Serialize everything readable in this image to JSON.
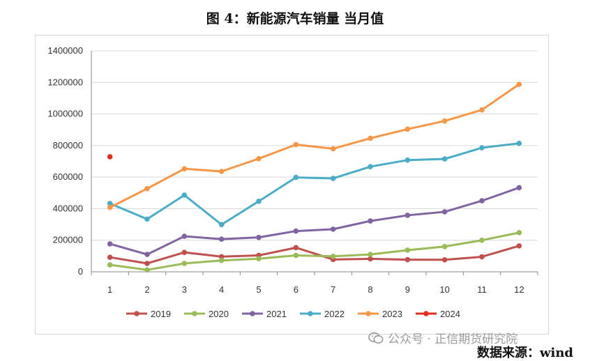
{
  "title": "图 4：新能源汽车销量 当月值",
  "watermark": "公众号 · 正信期货研究院",
  "source": "数据来源：wind",
  "chart_data": {
    "type": "line",
    "categories": [
      "1",
      "2",
      "3",
      "4",
      "5",
      "6",
      "7",
      "8",
      "9",
      "10",
      "11",
      "12"
    ],
    "ylim": [
      0,
      1400000
    ],
    "yticks": [
      "0",
      "200000",
      "400000",
      "600000",
      "800000",
      "1000000",
      "1200000",
      "1400000"
    ],
    "grid": "horizontal",
    "legend_position": "bottom",
    "series": [
      {
        "name": "2019",
        "color": "#c0504d",
        "values": [
          92000,
          53000,
          123000,
          96000,
          104000,
          153000,
          78000,
          82000,
          77000,
          76000,
          95000,
          164000
        ]
      },
      {
        "name": "2020",
        "color": "#9bbb59",
        "values": [
          44000,
          12000,
          53000,
          72000,
          83000,
          104000,
          98000,
          110000,
          137000,
          160000,
          200000,
          248000
        ]
      },
      {
        "name": "2021",
        "color": "#8064a2",
        "values": [
          177000,
          110000,
          225000,
          207000,
          218000,
          258000,
          270000,
          322000,
          358000,
          380000,
          450000,
          533000
        ]
      },
      {
        "name": "2022",
        "color": "#4bacc6",
        "values": [
          433000,
          334000,
          486000,
          299000,
          447000,
          598000,
          592000,
          666000,
          708000,
          715000,
          786000,
          814000
        ]
      },
      {
        "name": "2023",
        "color": "#f79646",
        "values": [
          408000,
          527000,
          653000,
          636000,
          717000,
          806000,
          780000,
          846000,
          904000,
          956000,
          1026000,
          1188000
        ]
      },
      {
        "name": "2024",
        "color": "#e0301e",
        "values": [
          729000,
          null,
          null,
          null,
          null,
          null,
          null,
          null,
          null,
          null,
          null,
          null
        ]
      }
    ]
  }
}
